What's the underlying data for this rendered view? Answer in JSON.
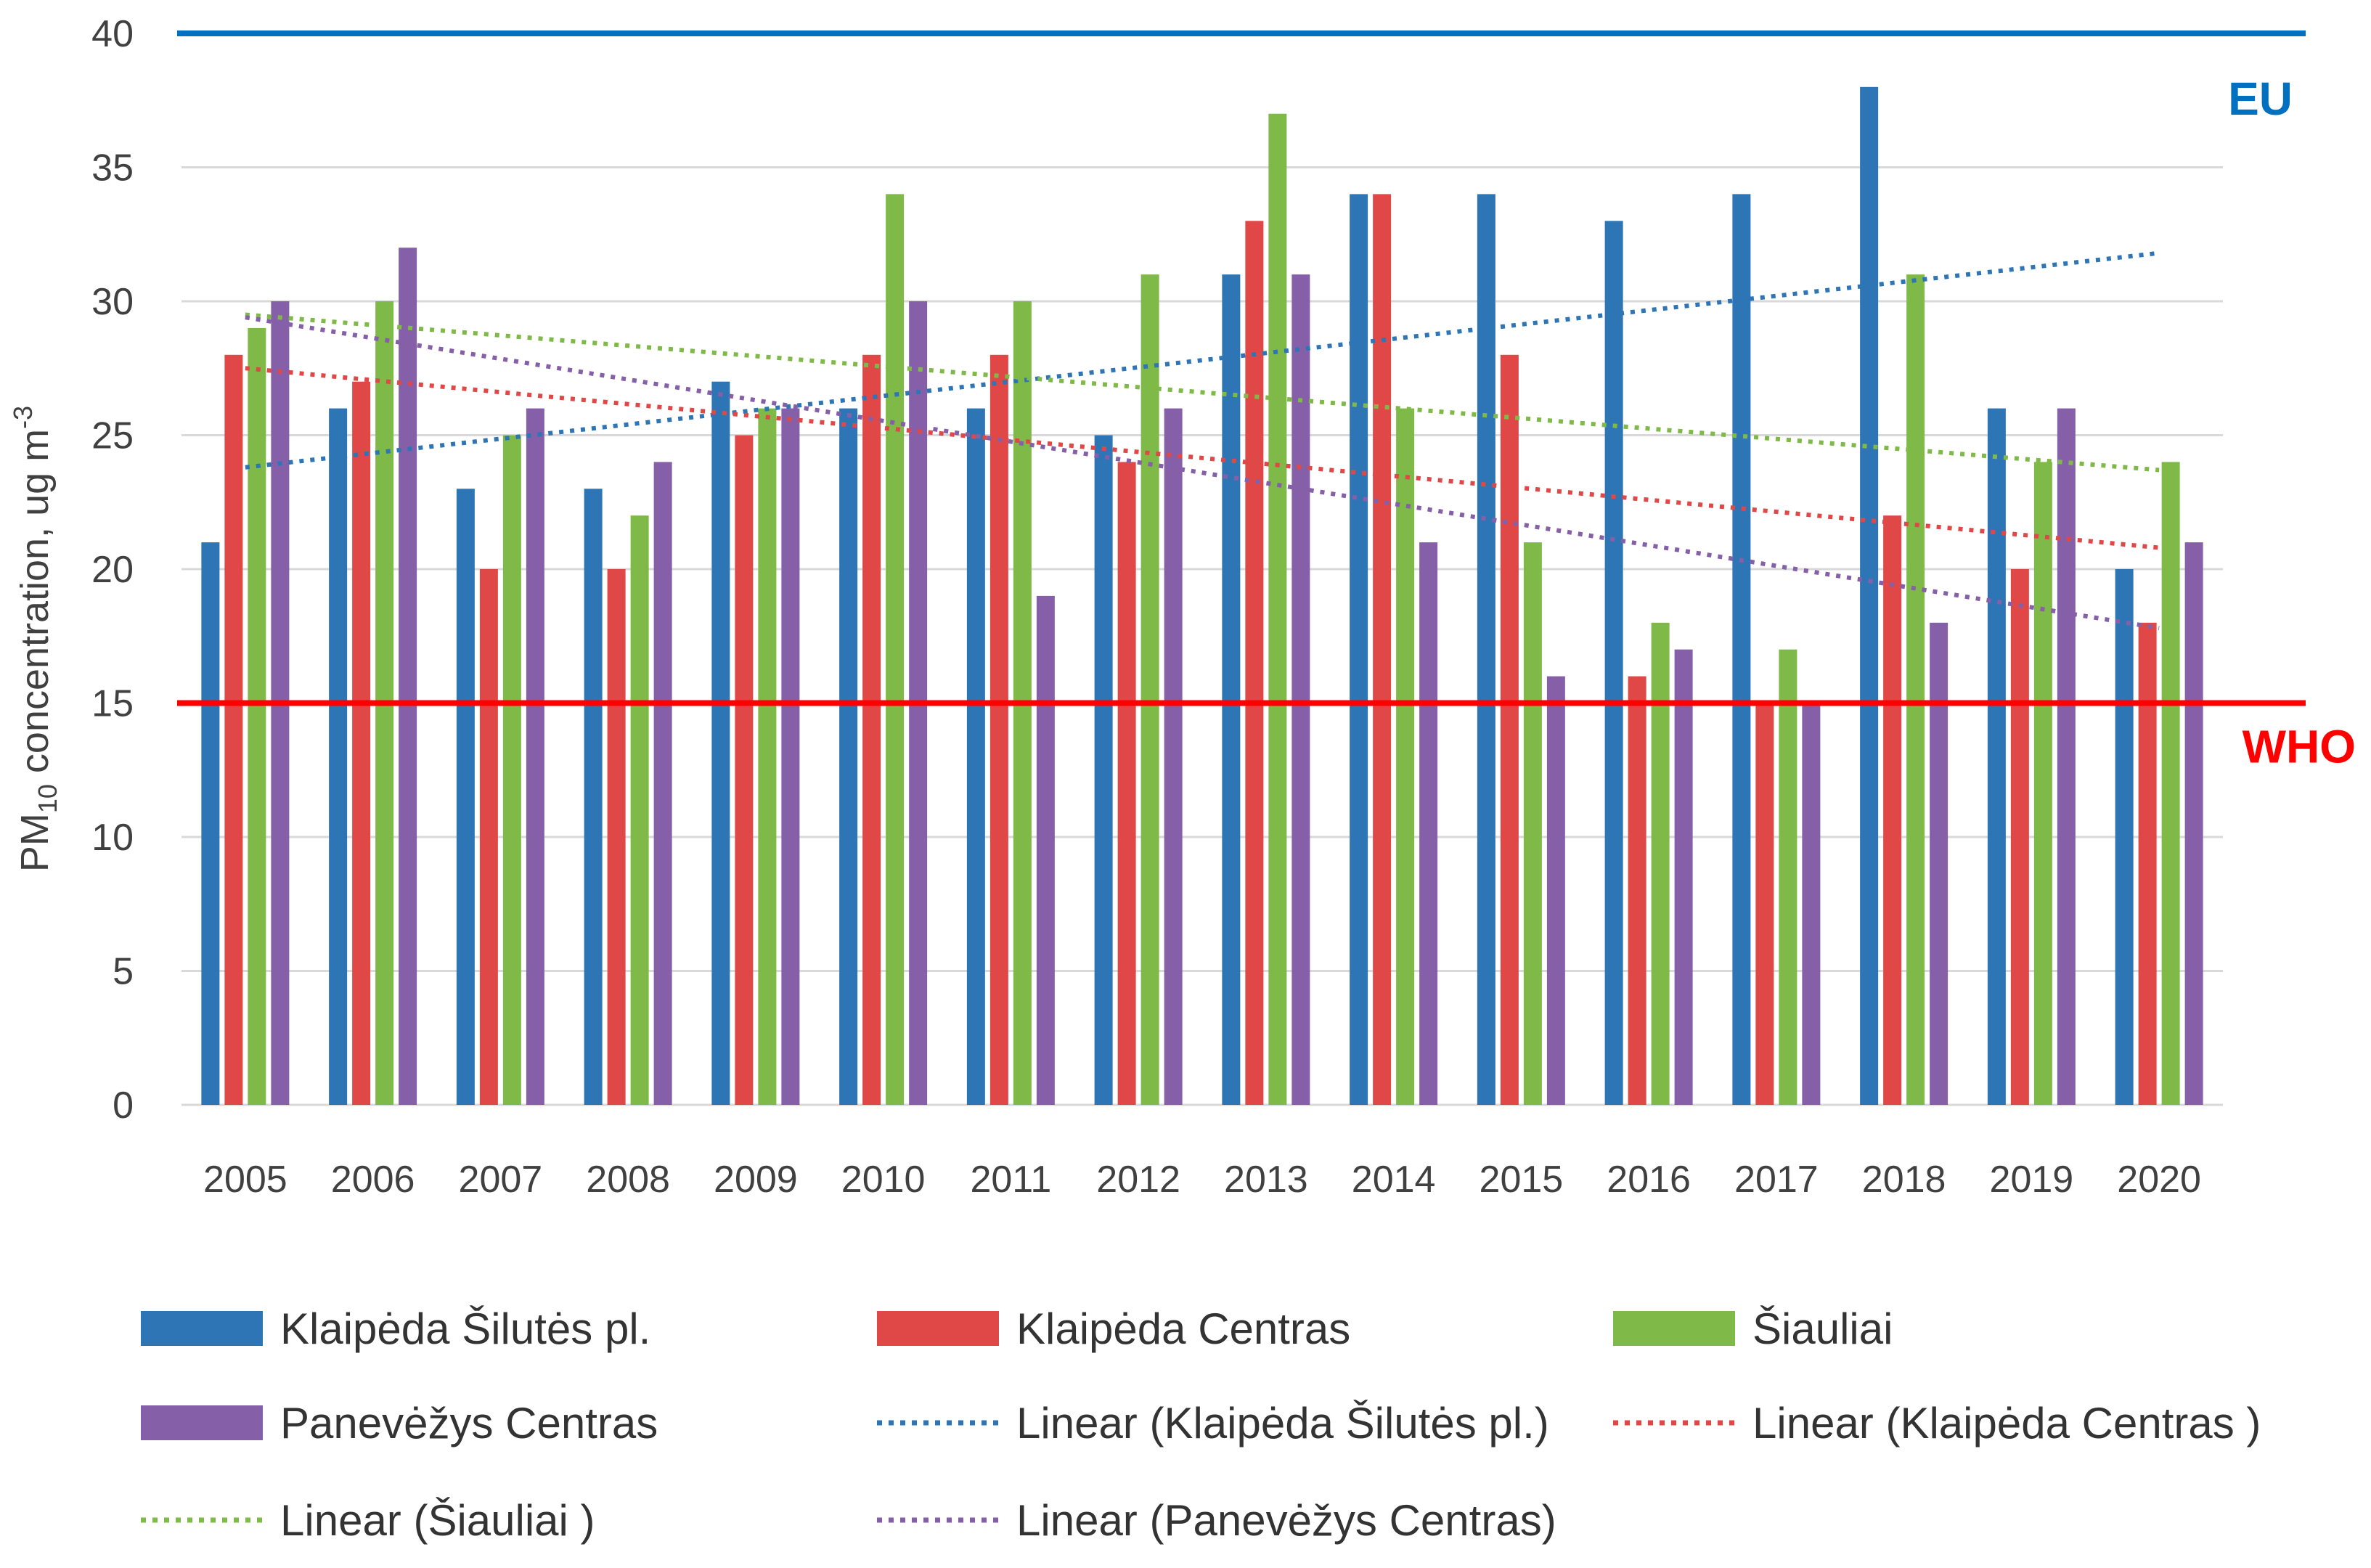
{
  "chart_data": {
    "type": "bar",
    "title": "",
    "xlabel": "",
    "ylabel": {
      "main": "PM",
      "sub": "10",
      "rest": " concentration, ug m",
      "sup": "-3"
    },
    "ylim": [
      0,
      40
    ],
    "yticks": [
      0,
      5,
      10,
      15,
      20,
      25,
      30,
      35,
      40
    ],
    "grid": true,
    "categories": [
      "2005",
      "2006",
      "2007",
      "2008",
      "2009",
      "2010",
      "2011",
      "2012",
      "2013",
      "2014",
      "2015",
      "2016",
      "2017",
      "2018",
      "2019",
      "2020"
    ],
    "series": [
      {
        "name": "Klaipėda Šilutės pl.",
        "color": "#2E75B6",
        "values": [
          21,
          26,
          23,
          23,
          27,
          26,
          26,
          25,
          31,
          34,
          34,
          33,
          34,
          38,
          26,
          20
        ]
      },
      {
        "name": "Klaipėda Centras",
        "color": "#E04848",
        "values": [
          28,
          27,
          20,
          20,
          25,
          28,
          28,
          24,
          33,
          34,
          28,
          16,
          15,
          22,
          20,
          18
        ]
      },
      {
        "name": "Šiauliai",
        "color": "#7FBA48",
        "values": [
          29,
          30,
          25,
          22,
          26,
          34,
          30,
          31,
          37,
          26,
          21,
          18,
          17,
          31,
          24,
          24
        ]
      },
      {
        "name": "Panevėžys Centras",
        "color": "#8560A8",
        "values": [
          30,
          32,
          26,
          24,
          26,
          30,
          19,
          26,
          31,
          21,
          16,
          17,
          15,
          18,
          26,
          21
        ]
      }
    ],
    "trendlines": [
      {
        "name": "Linear (Klaipėda Šilutės pl.)",
        "color": "#2E75B6",
        "start": 23.8,
        "end": 31.8
      },
      {
        "name": "Linear (Klaipėda Centras )",
        "color": "#E04848",
        "start": 27.5,
        "end": 20.8
      },
      {
        "name": "Linear (Šiauliai )",
        "color": "#7FBA48",
        "start": 29.5,
        "end": 23.7
      },
      {
        "name": "Linear (Panevėžys Centras)",
        "color": "#8560A8",
        "start": 29.4,
        "end": 17.8
      }
    ],
    "reference_lines": [
      {
        "label": "EU",
        "value": 40,
        "color": "#0070C0"
      },
      {
        "label": "WHO",
        "value": 15,
        "color": "#FF0000"
      }
    ],
    "legend": {
      "placement": "bottom",
      "entries": [
        {
          "label": "Klaipėda Šilutės pl.",
          "kind": "bar",
          "color": "#2E75B6"
        },
        {
          "label": "Klaipėda Centras",
          "kind": "bar",
          "color": "#E04848"
        },
        {
          "label": "Šiauliai",
          "kind": "bar",
          "color": "#7FBA48"
        },
        {
          "label": "Panevėžys Centras",
          "kind": "bar",
          "color": "#8560A8"
        },
        {
          "label": "Linear (Klaipėda Šilutės pl.)",
          "kind": "dotted",
          "color": "#2E75B6"
        },
        {
          "label": "Linear (Klaipėda Centras )",
          "kind": "dotted",
          "color": "#E04848"
        },
        {
          "label": "Linear (Šiauliai )",
          "kind": "dotted",
          "color": "#7FBA48"
        },
        {
          "label": "Linear (Panevėžys Centras)",
          "kind": "dotted",
          "color": "#8560A8"
        }
      ]
    }
  }
}
